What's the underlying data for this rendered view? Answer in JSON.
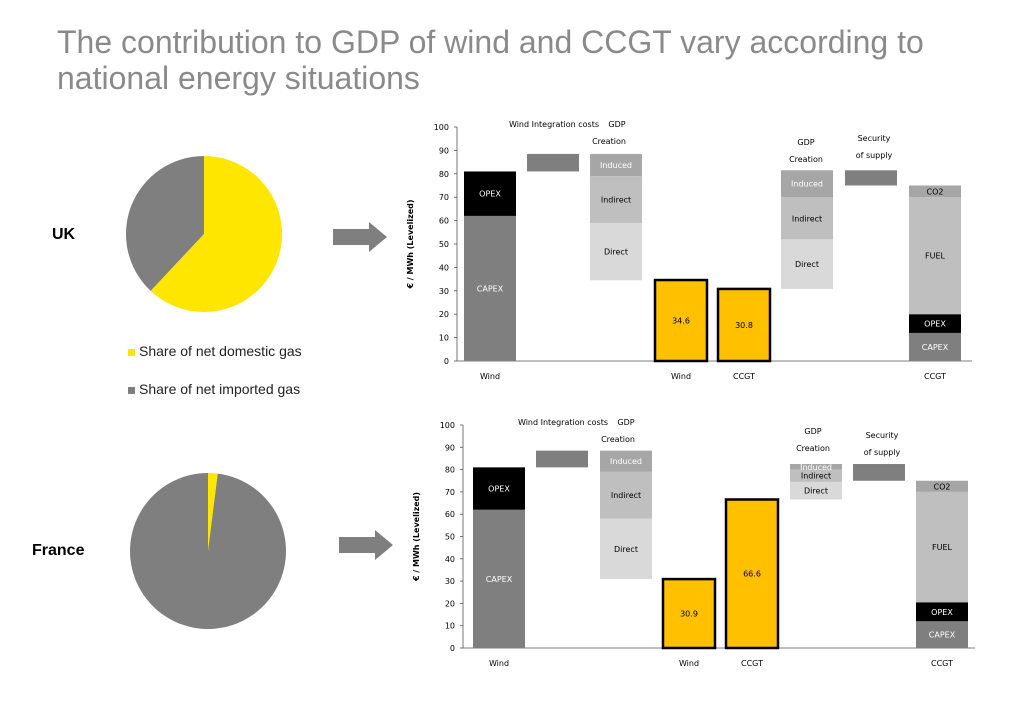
{
  "title": "The contribution to GDP of wind and CCGT vary according to national energy situations",
  "colors": {
    "domestic_gas": "#ffe600",
    "imported_gas": "#7f7f80",
    "capex": "#7f7f80",
    "opex": "#000000",
    "fuel": "#bfbfbf",
    "co2": "#a6a6a6",
    "integration": "#7f7f80",
    "induced": "#a6a6a6",
    "indirect": "#bfbfbf",
    "direct": "#d9d9d9",
    "gdp_total": "#ffc000",
    "arrow": "#7f7f80"
  },
  "legend": {
    "domestic": "Share of net domestic gas",
    "imported": "Share of net imported gas"
  },
  "chart_data": [
    {
      "type": "pie",
      "region": "UK",
      "slices": [
        {
          "series": "domestic",
          "value": 62
        },
        {
          "series": "imported",
          "value": 38
        }
      ]
    },
    {
      "type": "pie",
      "region": "France",
      "slices": [
        {
          "series": "domestic",
          "value": 2
        },
        {
          "series": "imported",
          "value": 98
        }
      ]
    },
    {
      "type": "bar",
      "region": "UK",
      "ylabel": "€ / MWh (Levelized)",
      "ylim": [
        0,
        100
      ],
      "yticks": [
        0,
        10,
        20,
        30,
        40,
        50,
        60,
        70,
        80,
        90,
        100
      ],
      "wind_integration_label": "Wind Integration costs",
      "wind_gdp_label": [
        "GDP",
        "Creation"
      ],
      "ccgt_gdp_label": [
        "GDP",
        "Creation"
      ],
      "security_label": [
        "Security",
        "of supply"
      ],
      "columns": [
        {
          "category": "Wind",
          "segments": [
            {
              "label": "CAPEX",
              "from": 0,
              "to": 62,
              "color": "capex"
            },
            {
              "label": "OPEX",
              "from": 62,
              "to": 81,
              "color": "opex"
            }
          ]
        },
        {
          "category": "",
          "segments": [
            {
              "label": "",
              "from": 81,
              "to": 88.5,
              "color": "integration"
            }
          ]
        },
        {
          "category": "",
          "segments": [
            {
              "label": "Direct",
              "from": 34.5,
              "to": 59,
              "color": "direct"
            },
            {
              "label": "Indirect",
              "from": 59,
              "to": 79,
              "color": "indirect"
            },
            {
              "label": "Induced",
              "from": 79,
              "to": 88.5,
              "color": "induced"
            }
          ]
        },
        {
          "category": "Wind",
          "segments": [
            {
              "label": "34.6",
              "from": 0,
              "to": 34.6,
              "color": "gdp_total",
              "outline": true
            }
          ]
        },
        {
          "category": "CCGT",
          "segments": [
            {
              "label": "30.8",
              "from": 0,
              "to": 30.8,
              "color": "gdp_total",
              "outline": true
            }
          ]
        },
        {
          "category": "",
          "segments": [
            {
              "label": "Direct",
              "from": 30.8,
              "to": 52,
              "color": "direct"
            },
            {
              "label": "Indirect",
              "from": 52,
              "to": 70,
              "color": "indirect"
            },
            {
              "label": "Induced",
              "from": 70,
              "to": 81.5,
              "color": "induced"
            }
          ]
        },
        {
          "category": "",
          "segments": [
            {
              "label": "",
              "from": 75,
              "to": 81.5,
              "color": "integration"
            }
          ]
        },
        {
          "category": "CCGT",
          "segments": [
            {
              "label": "CAPEX",
              "from": 0,
              "to": 12,
              "color": "capex"
            },
            {
              "label": "OPEX",
              "from": 12,
              "to": 20,
              "color": "opex"
            },
            {
              "label": "FUEL",
              "from": 20,
              "to": 70,
              "color": "fuel"
            },
            {
              "label": "CO2",
              "from": 70,
              "to": 75,
              "color": "co2"
            }
          ]
        }
      ]
    },
    {
      "type": "bar",
      "region": "France",
      "ylabel": "€ / MWh (Levelized)",
      "ylim": [
        0,
        100
      ],
      "yticks": [
        0,
        10,
        20,
        30,
        40,
        50,
        60,
        70,
        80,
        90,
        100
      ],
      "wind_integration_label": "Wind Integration costs",
      "wind_gdp_label": [
        "GDP",
        "Creation"
      ],
      "ccgt_gdp_label": [
        "GDP",
        "Creation"
      ],
      "security_label": [
        "Security",
        "of supply"
      ],
      "columns": [
        {
          "category": "Wind",
          "segments": [
            {
              "label": "CAPEX",
              "from": 0,
              "to": 62,
              "color": "capex"
            },
            {
              "label": "OPEX",
              "from": 62,
              "to": 81,
              "color": "opex"
            }
          ]
        },
        {
          "category": "",
          "segments": [
            {
              "label": "",
              "from": 81,
              "to": 88.5,
              "color": "integration"
            }
          ]
        },
        {
          "category": "",
          "segments": [
            {
              "label": "Direct",
              "from": 30.9,
              "to": 58,
              "color": "direct"
            },
            {
              "label": "Indirect",
              "from": 58,
              "to": 79,
              "color": "indirect"
            },
            {
              "label": "Induced",
              "from": 79,
              "to": 88.5,
              "color": "induced"
            }
          ]
        },
        {
          "category": "Wind",
          "segments": [
            {
              "label": "30.9",
              "from": 0,
              "to": 30.9,
              "color": "gdp_total",
              "outline": true
            }
          ]
        },
        {
          "category": "CCGT",
          "segments": [
            {
              "label": "66.6",
              "from": 0,
              "to": 66.6,
              "color": "gdp_total",
              "outline": true
            }
          ]
        },
        {
          "category": "",
          "segments": [
            {
              "label": "Direct",
              "from": 66.6,
              "to": 74.5,
              "color": "direct"
            },
            {
              "label": "Indirect",
              "from": 74.5,
              "to": 80,
              "color": "indirect"
            },
            {
              "label": "Induced",
              "from": 80,
              "to": 82.5,
              "color": "induced"
            }
          ]
        },
        {
          "category": "",
          "segments": [
            {
              "label": "",
              "from": 75,
              "to": 82.5,
              "color": "integration"
            }
          ]
        },
        {
          "category": "CCGT",
          "segments": [
            {
              "label": "CAPEX",
              "from": 0,
              "to": 12,
              "color": "capex"
            },
            {
              "label": "OPEX",
              "from": 12,
              "to": 20.5,
              "color": "opex"
            },
            {
              "label": "FUEL",
              "from": 20.5,
              "to": 70,
              "color": "fuel"
            },
            {
              "label": "CO2",
              "from": 70,
              "to": 75,
              "color": "co2"
            }
          ]
        }
      ]
    }
  ]
}
